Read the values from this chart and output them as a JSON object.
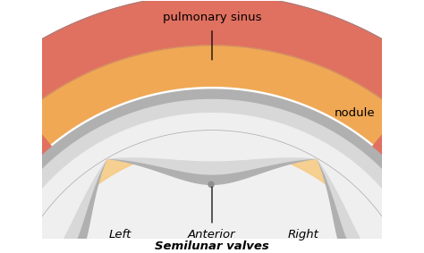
{
  "bg_color": "#ffffff",
  "outer_wall_color": "#e07060",
  "outer_wall_dark": "#c05040",
  "sinus_color": "#f0a855",
  "sinus_light": "#f8c878",
  "inner_white": "#f0f0f0",
  "leaflet_gray": "#b0b0b0",
  "leaflet_light": "#d8d8d8",
  "leaflet_white": "#efefef",
  "leaflet_dark": "#909090",
  "commissure_dark": "#888888",
  "labels": {
    "pulmonary_sinus": "pulmonary sinus",
    "nodule": "nodule",
    "left": "Left",
    "anterior": "Anterior",
    "right": "Right",
    "semilunar": "Semilunar valves"
  },
  "font_size": 9.5
}
